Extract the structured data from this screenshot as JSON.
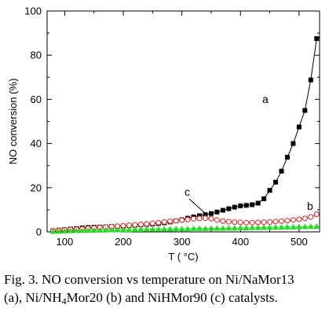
{
  "chart_data": {
    "type": "scatter",
    "title": "",
    "xlabel": "T ( °C)",
    "ylabel": "NO conversion (%)",
    "xlim": [
      70,
      535
    ],
    "ylim": [
      0,
      100
    ],
    "xticks": [
      100,
      200,
      300,
      400,
      500
    ],
    "yticks": [
      0,
      20,
      40,
      60,
      80,
      100
    ],
    "grid": false,
    "series": [
      {
        "name": "a",
        "marker": "filled-square",
        "color": "#000000",
        "x": [
          80,
          90,
          100,
          110,
          120,
          130,
          140,
          150,
          160,
          170,
          180,
          190,
          200,
          210,
          220,
          230,
          240,
          250,
          260,
          270,
          280,
          290,
          300,
          310,
          320,
          330,
          340,
          350,
          360,
          370,
          380,
          390,
          400,
          410,
          420,
          430,
          440,
          450,
          460,
          470,
          480,
          490,
          500,
          510,
          520,
          530
        ],
        "y": [
          0.5,
          0.8,
          1.0,
          1.3,
          1.5,
          1.8,
          2.0,
          2.1,
          2.2,
          2.3,
          2.4,
          2.5,
          2.6,
          2.8,
          3.0,
          3.2,
          3.4,
          3.6,
          3.8,
          4.1,
          4.5,
          5.0,
          5.5,
          6.2,
          6.8,
          7.3,
          7.8,
          8.3,
          9.0,
          9.8,
          10.5,
          11.2,
          11.8,
          12.0,
          12.3,
          13.0,
          15.0,
          18.8,
          22.5,
          27.5,
          33.8,
          40.0,
          47.5,
          55.0,
          68.8,
          87.5
        ]
      },
      {
        "name": "b",
        "marker": "open-circle",
        "color": "#dd2222",
        "x": [
          80,
          90,
          100,
          110,
          120,
          130,
          140,
          150,
          160,
          170,
          180,
          190,
          200,
          210,
          220,
          230,
          240,
          250,
          260,
          270,
          280,
          290,
          300,
          310,
          320,
          330,
          340,
          350,
          360,
          370,
          380,
          390,
          400,
          410,
          420,
          430,
          440,
          450,
          460,
          470,
          480,
          490,
          500,
          510,
          520,
          530
        ],
        "y": [
          0.5,
          0.7,
          0.9,
          1.1,
          1.2,
          1.4,
          1.6,
          1.8,
          2.0,
          2.2,
          2.4,
          2.6,
          2.8,
          3.0,
          3.2,
          3.4,
          3.6,
          3.9,
          4.2,
          4.5,
          4.8,
          5.0,
          5.3,
          5.6,
          5.9,
          6.1,
          6.2,
          6.0,
          5.4,
          4.9,
          4.6,
          4.4,
          4.3,
          4.2,
          4.2,
          4.3,
          4.4,
          4.5,
          4.7,
          4.9,
          5.1,
          5.4,
          5.7,
          6.1,
          6.8,
          8.0
        ]
      },
      {
        "name": "c",
        "marker": "filled-triangle",
        "color": "#22dd22",
        "x": [
          80,
          90,
          100,
          110,
          120,
          130,
          140,
          150,
          160,
          170,
          180,
          190,
          200,
          210,
          220,
          230,
          240,
          250,
          260,
          270,
          280,
          290,
          300,
          310,
          320,
          330,
          340,
          350,
          360,
          370,
          380,
          390,
          400,
          410,
          420,
          430,
          440,
          450,
          460,
          470,
          480,
          490,
          500,
          510,
          520,
          530
        ],
        "y": [
          0.2,
          0.3,
          0.4,
          0.5,
          0.6,
          0.6,
          0.7,
          0.7,
          0.8,
          0.8,
          0.9,
          0.9,
          1.0,
          1.0,
          1.1,
          1.1,
          1.2,
          1.2,
          1.2,
          1.3,
          1.3,
          1.4,
          1.4,
          1.4,
          1.5,
          1.5,
          1.5,
          1.6,
          1.6,
          1.6,
          1.7,
          1.7,
          1.8,
          1.8,
          1.9,
          1.9,
          2.0,
          2.0,
          2.1,
          2.1,
          2.2,
          2.2,
          2.3,
          2.3,
          2.4,
          2.5
        ]
      }
    ],
    "annotations": [
      {
        "text": "a",
        "series": "a"
      },
      {
        "text": "b",
        "series": "b"
      },
      {
        "text": "c",
        "series": "c"
      }
    ]
  },
  "caption": {
    "line1": "Fig. 3. NO conversion vs temperature on Ni/NaMor13",
    "line2_part1": "(a), Ni/NH",
    "line2_sub": "4",
    "line2_part2": "Mor20 (b) and NiHMor90 (c) catalysts."
  }
}
